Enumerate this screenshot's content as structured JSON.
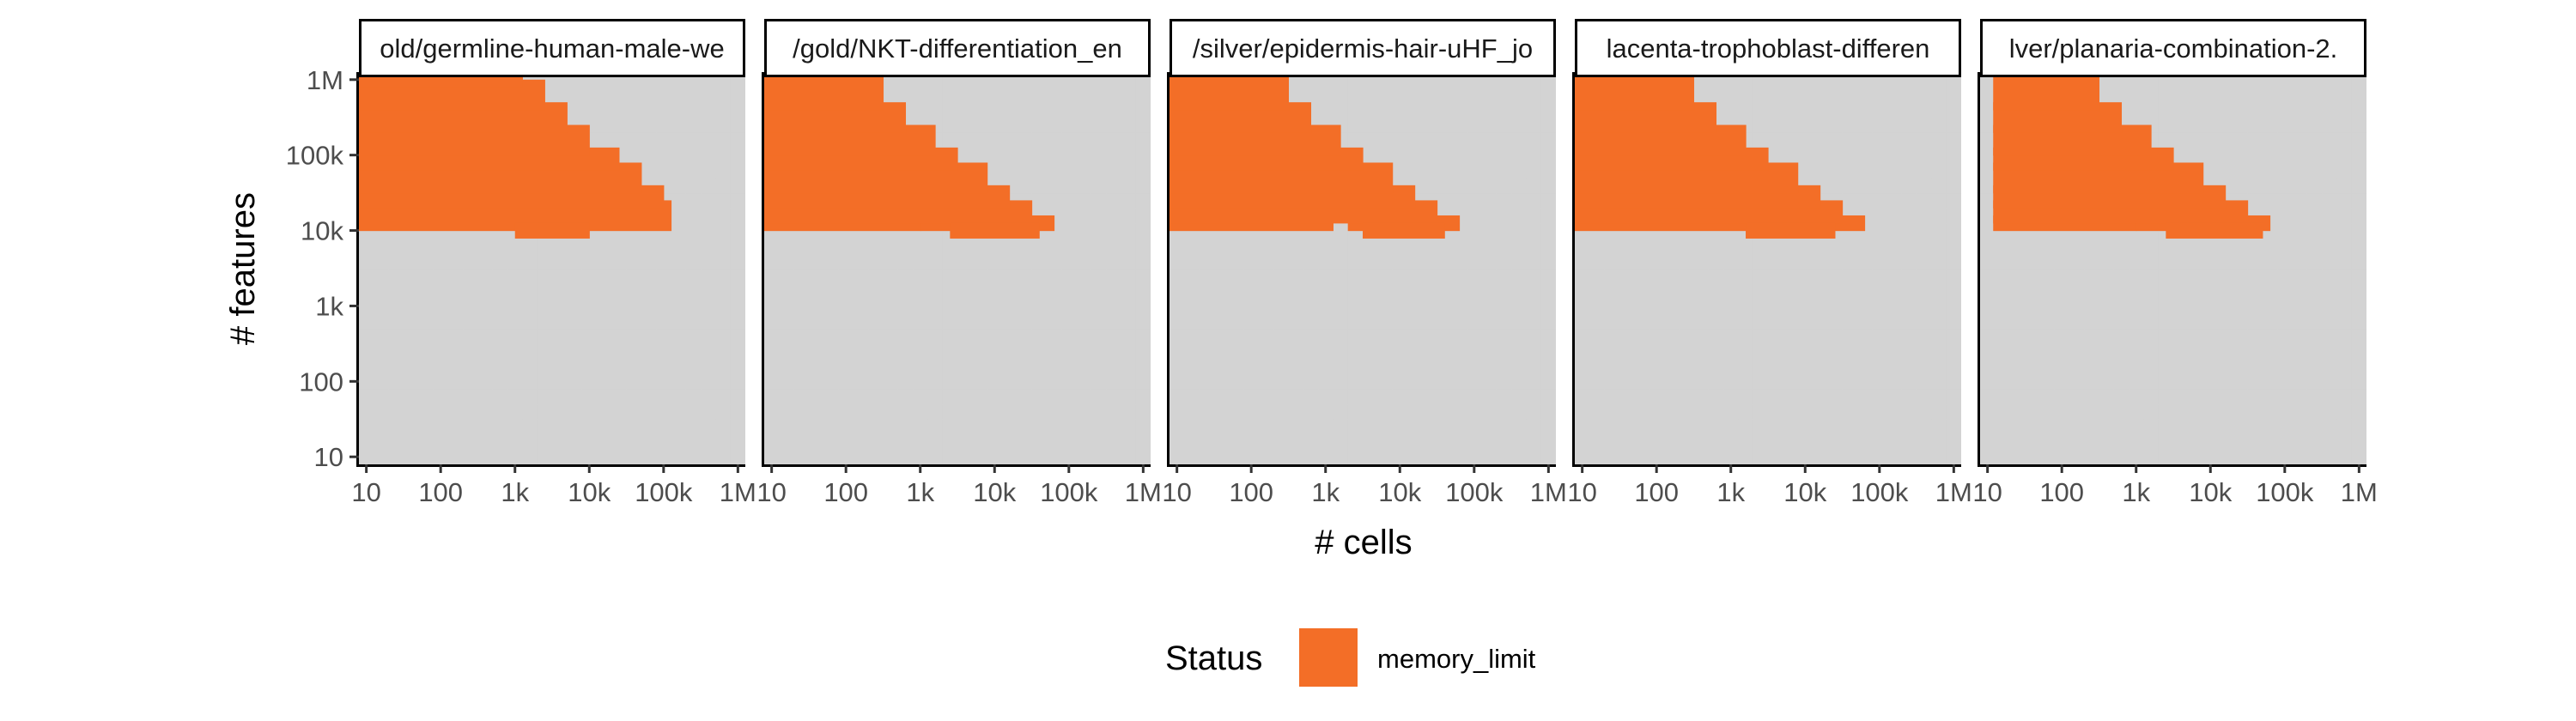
{
  "chart_data": {
    "type": "heatmap",
    "x_label": "# cells",
    "y_label": "# features",
    "x_scale": "log10",
    "y_scale": "log10",
    "x_range": [
      10,
      1000000
    ],
    "y_range": [
      10,
      1000000
    ],
    "x_ticks": [
      {
        "value": 10,
        "label": "10"
      },
      {
        "value": 100,
        "label": "100"
      },
      {
        "value": 1000,
        "label": "1k"
      },
      {
        "value": 10000,
        "label": "10k"
      },
      {
        "value": 100000,
        "label": "100k"
      },
      {
        "value": 1000000,
        "label": "1M"
      }
    ],
    "y_ticks": [
      {
        "value": 10,
        "label": "10"
      },
      {
        "value": 100,
        "label": "100"
      },
      {
        "value": 1000,
        "label": "1k"
      },
      {
        "value": 10000,
        "label": "10k"
      },
      {
        "value": 100000,
        "label": "100k"
      },
      {
        "value": 1000000,
        "label": "1M"
      }
    ],
    "grid_note": "cells on a log grid, 5 steps per decade; x from 10 to 1M cells, y from 10 to 1M features",
    "region_note": "colored region: tested datasets with cells*features <= ~6.3e8 (cells x features size limit); orange = memory_limit, gray = other/untested",
    "legend": {
      "title": "Status",
      "position": "bottom",
      "items": [
        {
          "label": "memory_limit",
          "color": "#F36E27"
        }
      ]
    },
    "colors": {
      "memory_limit": "#F36E27",
      "other": "#D3D3D3"
    },
    "panels": [
      {
        "title": "old/germline-human-male-we",
        "memory_limit": [
          {
            "features": [
              12589,
              19953
            ],
            "cells": [
              10,
              100000
            ]
          },
          {
            "features": [
              25119,
              31623
            ],
            "cells": [
              10,
              79433
            ]
          },
          {
            "features": [
              39811,
              63096
            ],
            "cells": [
              10,
              39811
            ]
          },
          {
            "features": [
              79433,
              100000
            ],
            "cells": [
              10,
              19953
            ]
          },
          {
            "features": [
              125893,
              199526
            ],
            "cells": [
              10,
              7943
            ]
          },
          {
            "features": [
              251189,
              398107
            ],
            "cells": [
              10,
              3981
            ]
          },
          {
            "features": [
              501187,
              794328
            ],
            "cells": [
              10,
              1995
            ]
          },
          {
            "features": [
              1000000,
              1000000
            ],
            "cells": [
              10,
              1000
            ]
          },
          {
            "features": [
              10000,
              10000
            ],
            "cells": [
              1259,
              7943
            ]
          }
        ]
      },
      {
        "title": "/gold/NKT-differentiation_en",
        "memory_limit": [
          {
            "features": [
              12589,
              12589
            ],
            "cells": [
              10,
              794
            ],
            "cells_extra": [
              1259,
              50119
            ]
          },
          {
            "features": [
              15849,
              19953
            ],
            "cells": [
              10,
              25119
            ]
          },
          {
            "features": [
              25119,
              31623
            ],
            "cells": [
              10,
              12589
            ]
          },
          {
            "features": [
              39811,
              63096
            ],
            "cells": [
              10,
              6310
            ]
          },
          {
            "features": [
              79433,
              100000
            ],
            "cells": [
              10,
              2512
            ]
          },
          {
            "features": [
              125893,
              199526
            ],
            "cells": [
              10,
              1259
            ]
          },
          {
            "features": [
              251189,
              398107
            ],
            "cells": [
              10,
              501
            ]
          },
          {
            "features": [
              501187,
              1000000
            ],
            "cells": [
              10,
              251
            ]
          },
          {
            "features": [
              10000,
              10000
            ],
            "cells": [
              3162,
              31623
            ]
          }
        ]
      },
      {
        "title": "/silver/epidermis-hair-uHF_jo",
        "memory_limit": [
          {
            "features": [
              12589,
              12589
            ],
            "cells": [
              10,
              1000
            ],
            "cells_extra": [
              2512,
              50119
            ]
          },
          {
            "features": [
              15849,
              19953
            ],
            "cells": [
              10,
              25119
            ]
          },
          {
            "features": [
              25119,
              31623
            ],
            "cells": [
              10,
              12589
            ]
          },
          {
            "features": [
              39811,
              63096
            ],
            "cells": [
              10,
              6310
            ]
          },
          {
            "features": [
              79433,
              100000
            ],
            "cells": [
              10,
              2512
            ]
          },
          {
            "features": [
              125893,
              199526
            ],
            "cells": [
              10,
              1259
            ]
          },
          {
            "features": [
              251189,
              398107
            ],
            "cells": [
              10,
              501
            ]
          },
          {
            "features": [
              501187,
              1000000
            ],
            "cells": [
              10,
              251
            ]
          },
          {
            "features": [
              10000,
              10000
            ],
            "cells": [
              3981,
              31623
            ]
          }
        ]
      },
      {
        "title": "lacenta-trophoblast-differen",
        "memory_limit": [
          {
            "features": [
              12589,
              12589
            ],
            "cells": [
              10,
              1259
            ],
            "cells_extra": [
              1995,
              50119
            ]
          },
          {
            "features": [
              15849,
              19953
            ],
            "cells": [
              10,
              25119
            ]
          },
          {
            "features": [
              25119,
              31623
            ],
            "cells": [
              10,
              12589
            ]
          },
          {
            "features": [
              39811,
              63096
            ],
            "cells": [
              10,
              6310
            ]
          },
          {
            "features": [
              79433,
              100000
            ],
            "cells": [
              10,
              2512
            ]
          },
          {
            "features": [
              125893,
              199526
            ],
            "cells": [
              10,
              1259
            ]
          },
          {
            "features": [
              251189,
              398107
            ],
            "cells": [
              10,
              501
            ]
          },
          {
            "features": [
              501187,
              1000000
            ],
            "cells": [
              10,
              251
            ]
          },
          {
            "features": [
              10000,
              10000
            ],
            "cells": [
              1995,
              19953
            ]
          }
        ]
      },
      {
        "title": "lver/planaria-combination-2.",
        "memory_limit": [
          {
            "features": [
              12589,
              12589
            ],
            "cells": [
              15,
              794
            ],
            "cells_extra": [
              1259,
              50119
            ]
          },
          {
            "features": [
              15849,
              19953
            ],
            "cells": [
              15,
              25119
            ]
          },
          {
            "features": [
              25119,
              31623
            ],
            "cells": [
              15,
              12589
            ]
          },
          {
            "features": [
              39811,
              63096
            ],
            "cells": [
              15,
              6310
            ]
          },
          {
            "features": [
              79433,
              100000
            ],
            "cells": [
              15,
              2512
            ]
          },
          {
            "features": [
              125893,
              199526
            ],
            "cells": [
              15,
              1259
            ]
          },
          {
            "features": [
              251189,
              398107
            ],
            "cells": [
              15,
              501
            ]
          },
          {
            "features": [
              501187,
              1000000
            ],
            "cells": [
              15,
              251
            ]
          },
          {
            "features": [
              10000,
              10000
            ],
            "cells": [
              3162,
              39811
            ]
          }
        ]
      }
    ]
  }
}
